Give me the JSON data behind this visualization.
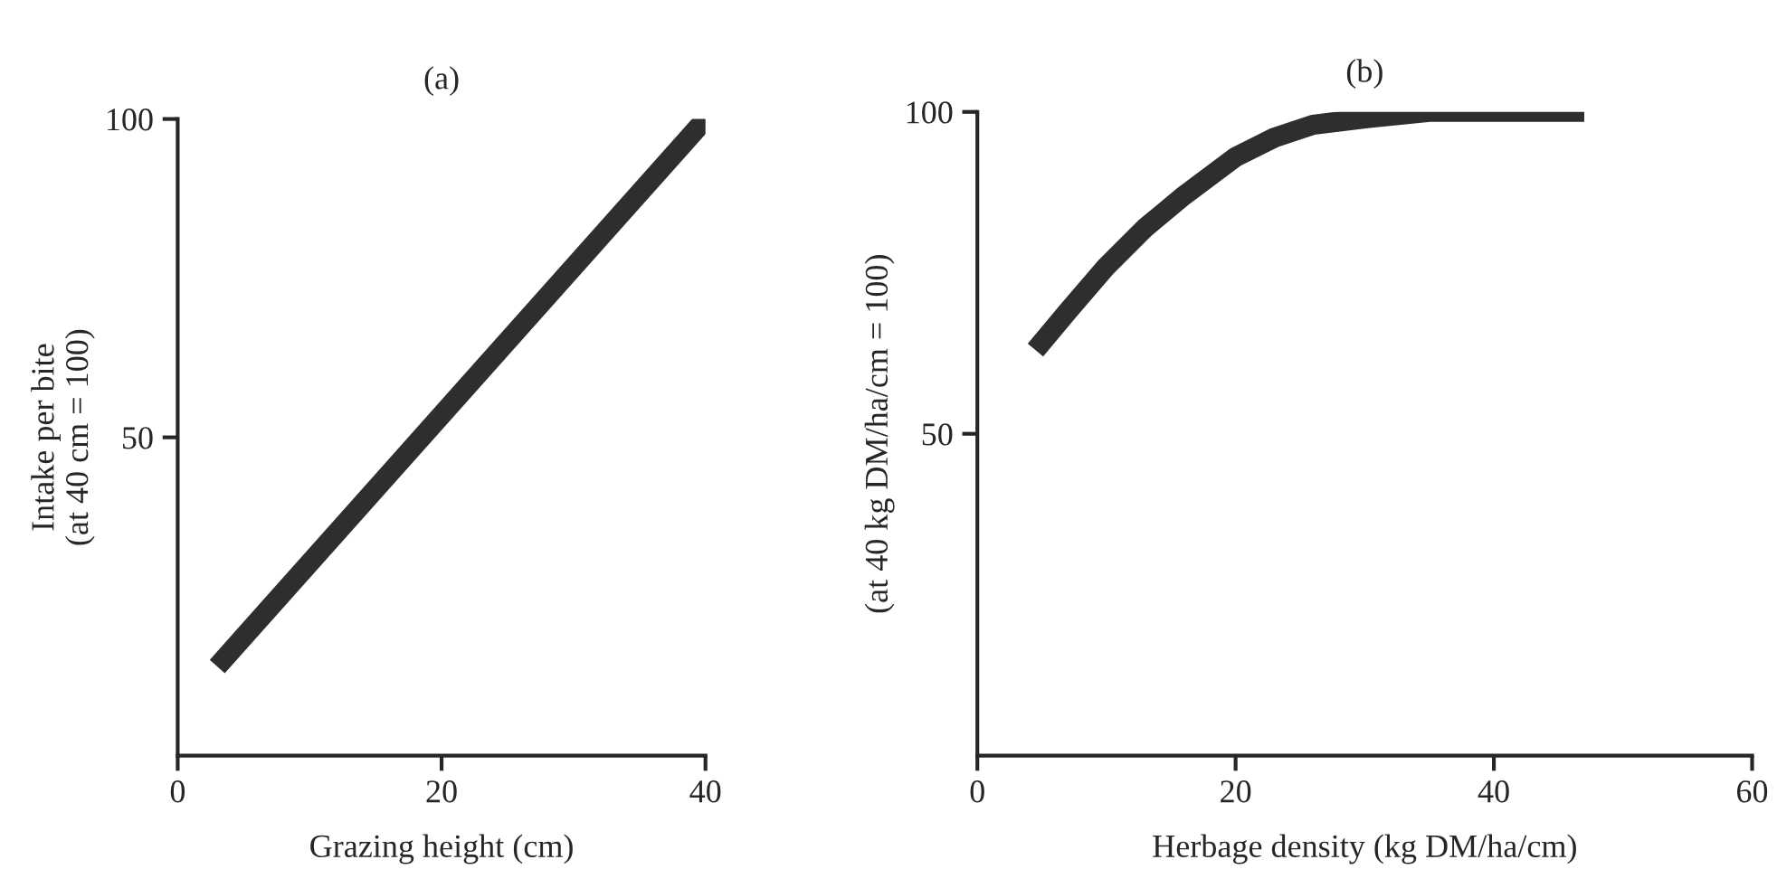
{
  "chart_data": [
    {
      "type": "line",
      "title": "(a)",
      "xlabel": "Grazing height (cm)",
      "ylabel": "Intake per bite\n(at 40 cm = 100)",
      "xlim": [
        0,
        40
      ],
      "ylim": [
        0,
        100
      ],
      "xticks": [
        0,
        20,
        40
      ],
      "yticks": [
        50,
        100
      ],
      "grid": false,
      "legend": false,
      "series": [
        {
          "color": "#2e2e2e",
          "x": [
            3,
            40
          ],
          "values": [
            14,
            100
          ]
        }
      ]
    },
    {
      "type": "line",
      "title": "(b)",
      "xlabel": "Herbage density (kg DM/ha/cm)",
      "ylabel": "(at 40 kg DM/ha/cm = 100)",
      "xlim": [
        0,
        60
      ],
      "ylim": [
        0,
        100
      ],
      "xticks": [
        0,
        20,
        40,
        60
      ],
      "yticks": [
        50,
        100
      ],
      "grid": false,
      "legend": false,
      "series": [
        {
          "color": "#2e2e2e",
          "x": [
            4.5,
            7,
            10,
            13,
            16,
            20,
            23,
            26,
            30,
            35,
            40,
            47
          ],
          "values": [
            63,
            69,
            76,
            82,
            87,
            93,
            96,
            98,
            99,
            100,
            100,
            100
          ]
        }
      ]
    }
  ]
}
